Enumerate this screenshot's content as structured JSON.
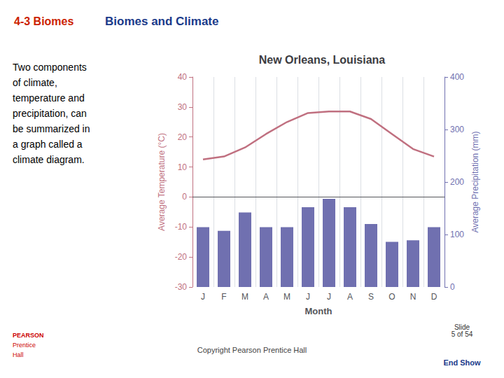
{
  "chart_data": {
    "type": "bar",
    "title": "New Orleans, Louisiana",
    "x_label": "Month",
    "y_label": "Average Temperature (°C)",
    "y2_label": "Average Precipitation (mm)",
    "categories": [
      "J",
      "F",
      "M",
      "A",
      "M",
      "J",
      "J",
      "A",
      "S",
      "O",
      "N",
      "D"
    ],
    "series": [
      {
        "type": "bar",
        "axis": "y2",
        "color": "#7070b0",
        "values": [
          114,
          107,
          142,
          114,
          114,
          152,
          168,
          152,
          120,
          86,
          89,
          114
        ]
      },
      {
        "type": "line",
        "color": "#c07080",
        "values": [
          12.5,
          13.5,
          16.5,
          21.0,
          25.0,
          28.0,
          28.5,
          28.5,
          26.0,
          21.0,
          16.0,
          13.5
        ]
      }
    ],
    "ylim": [
      -30,
      40
    ],
    "yticks": [
      -30,
      -20,
      -10,
      0,
      10,
      20,
      30,
      40
    ],
    "y2lim": [
      0,
      400
    ],
    "y2ticks": [
      0,
      100,
      200,
      300,
      400
    ],
    "grid": true,
    "annotations": [
      "4-3 Biomes",
      "Biomes and Climate",
      "Two components\nof climate,\ntemperature and\nprecipitation, can\nbe summarized in\na graph called a\nclimate diagram.",
      "PEARSON",
      "Prentice",
      "Hall",
      "Copyright Pearson Prentice Hall",
      "Slide\n5 of 54",
      "End Show"
    ]
  }
}
